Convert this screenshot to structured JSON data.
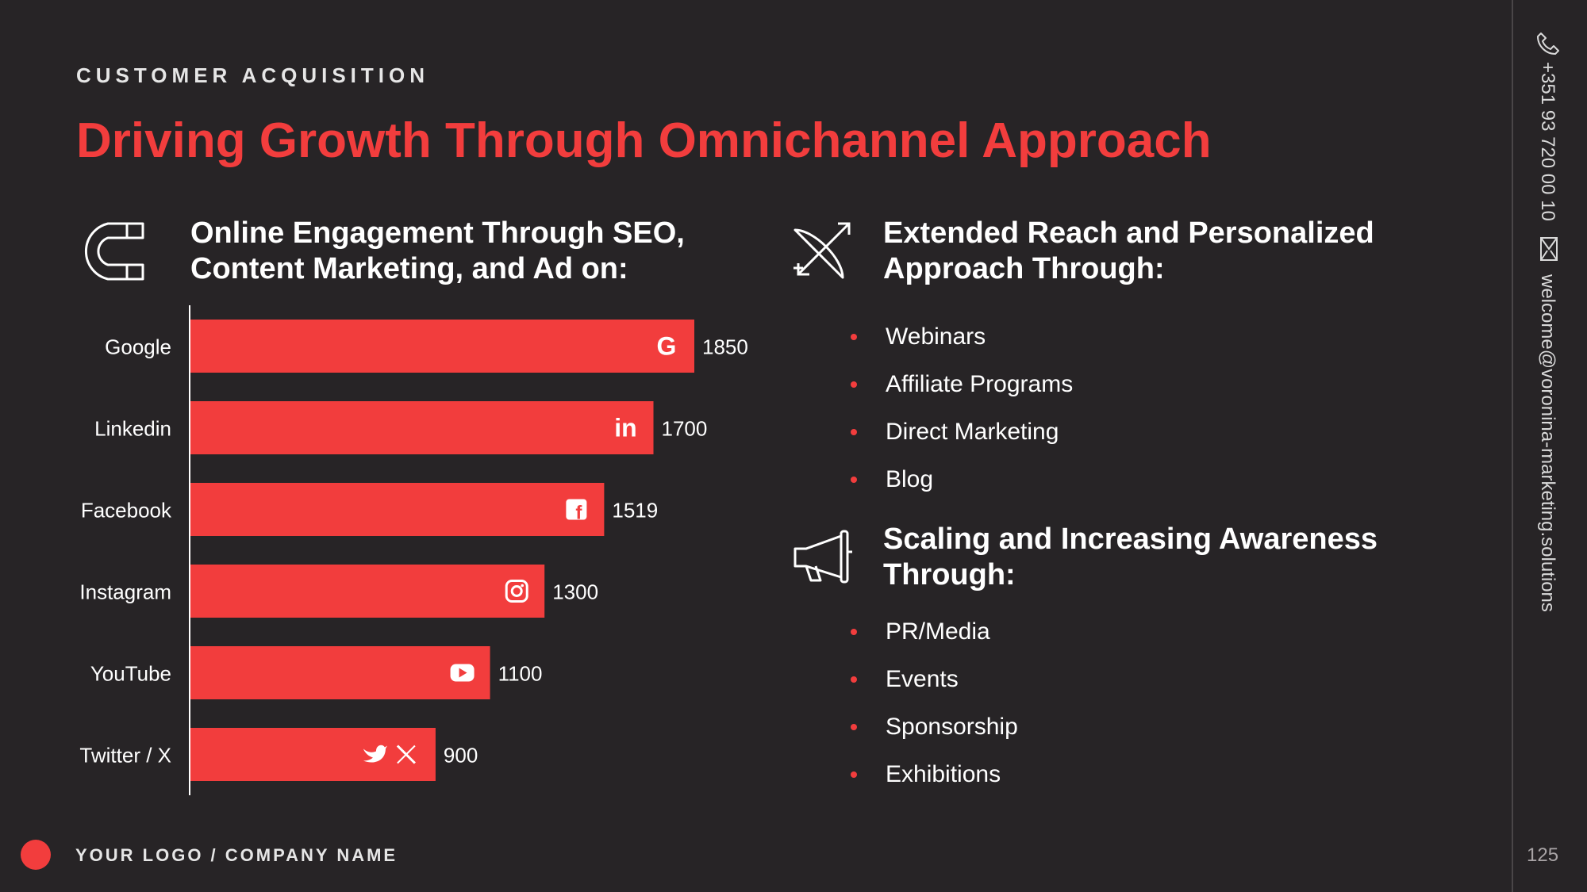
{
  "header": {
    "eyebrow": "CUSTOMER ACQUISITION",
    "title": "Driving Growth Through Omnichannel Approach"
  },
  "online_section": {
    "icon": "magnet-icon",
    "heading_line1": "Online Engagement Through SEO,",
    "heading_line2": "Content Marketing, and Ad on:"
  },
  "chart_data": {
    "type": "bar",
    "orientation": "horizontal",
    "title": "",
    "xlabel": "",
    "ylabel": "",
    "categories": [
      "Google",
      "Linkedin",
      "Facebook",
      "Instagram",
      "YouTube",
      "Twitter / X"
    ],
    "values": [
      1850,
      1700,
      1519,
      1300,
      1100,
      900
    ],
    "icons": [
      "google-icon",
      "linkedin-icon",
      "facebook-icon",
      "instagram-icon",
      "youtube-icon",
      "twitter-x-icon"
    ],
    "xlim": [
      0,
      1850
    ],
    "grid": false,
    "legend": "none",
    "bar_color": "#f23d3d"
  },
  "reach_section": {
    "icon": "bow-arrow-icon",
    "heading_line1": "Extended Reach and Personalized",
    "heading_line2": "Approach Through:",
    "items": [
      "Webinars",
      "Affiliate Programs",
      "Direct Marketing",
      "Blog"
    ]
  },
  "awareness_section": {
    "icon": "megaphone-icon",
    "heading_line1": "Scaling and Increasing Awareness",
    "heading_line2": "Through:",
    "items": [
      "PR/Media",
      "Events",
      "Sponsorship",
      "Exhibitions"
    ]
  },
  "sidebar": {
    "phone_icon": "phone-icon",
    "phone": "+351 93 720 00 10",
    "email_icon": "envelope-icon",
    "email": "welcome@voronina-marketing.solutions",
    "page_number": "125"
  },
  "footer": {
    "logo_name": "YOUR LOGO / COMPANY NAME"
  },
  "colors": {
    "background": "#272426",
    "accent": "#f23d3d",
    "text": "#ffffff"
  }
}
